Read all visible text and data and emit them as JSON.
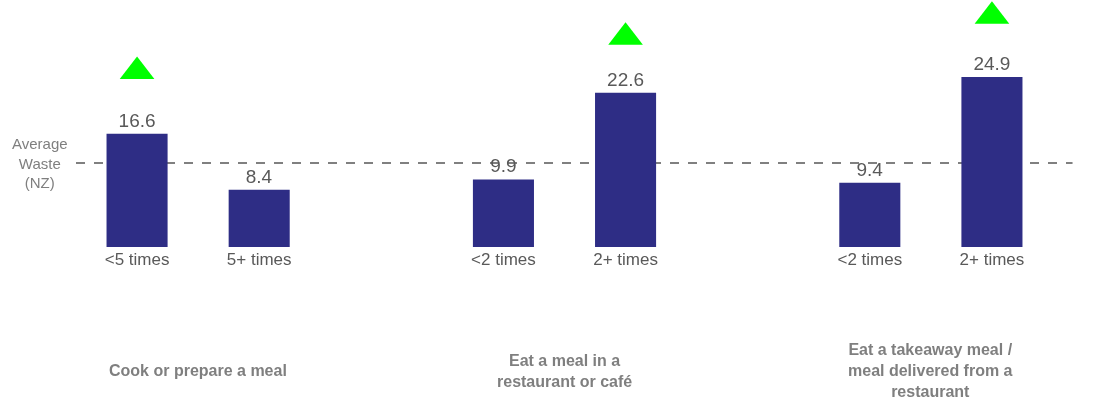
{
  "chart_data": {
    "type": "bar",
    "categories": [
      "<5 times",
      "5+ times",
      null,
      "<2 times",
      "2+ times",
      null,
      "<2 times",
      "2+ times"
    ],
    "series": [
      {
        "color": "#2e2d85",
        "values": [
          16.6,
          8.4,
          null,
          9.9,
          22.6,
          null,
          9.4,
          24.9
        ],
        "value_labels": [
          "16.6",
          "8.4",
          null,
          "9.9",
          "22.6",
          null,
          "9.4",
          "24.9"
        ]
      },
      {
        "type": "scatter",
        "color": "#00ff00",
        "values": [
          25.7,
          null,
          null,
          null,
          30.7,
          null,
          null,
          33.8
        ]
      }
    ],
    "marker": "triangle",
    "tick_labels": "x",
    "ref_lines": [
      {
        "axis": "y",
        "value": 12.3,
        "label": "Average Waste (NZ)",
        "color": "#808080",
        "line_style": "dashed"
      }
    ],
    "annotations": [
      "Cook or prepare a meal",
      "Eat a meal in a restaurant or café",
      "Eat a takeaway meal / meal delivered from a restaurant"
    ]
  }
}
